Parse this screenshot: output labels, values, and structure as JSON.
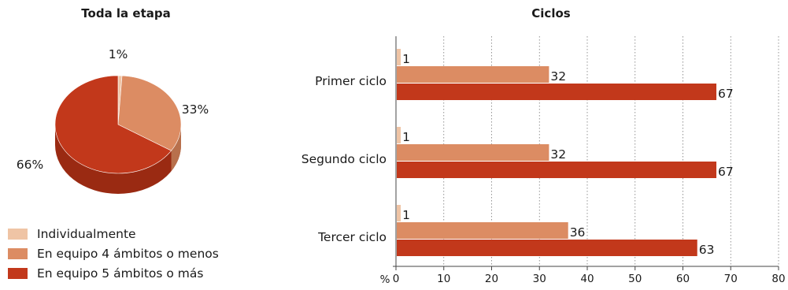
{
  "colors": {
    "individual": "#efc4a5",
    "team4": "#dc8c63",
    "team5": "#c2381b",
    "team5_side": "#9a2a12"
  },
  "legend": [
    {
      "label": "Individualmente",
      "color": "#efc4a5"
    },
    {
      "label": "En equipo 4 ámbitos o menos",
      "color": "#dc8c63"
    },
    {
      "label": "En equipo 5 ámbitos o más",
      "color": "#c2381b"
    }
  ],
  "chart_data": [
    {
      "type": "pie",
      "title": "Toda la etapa",
      "labels": [
        "Individualmente",
        "En equipo 4 ámbitos o menos",
        "En equipo 5 ámbitos o más"
      ],
      "values": [
        1,
        33,
        66
      ],
      "value_labels": [
        "1%",
        "33%",
        "66%"
      ]
    },
    {
      "type": "bar",
      "orientation": "horizontal",
      "title": "Ciclos",
      "categories": [
        "Primer ciclo",
        "Segundo ciclo",
        "Tercer ciclo"
      ],
      "series": [
        {
          "name": "Individualmente",
          "values": [
            1,
            1,
            1
          ]
        },
        {
          "name": "En equipo 4 ámbitos o menos",
          "values": [
            32,
            32,
            36
          ]
        },
        {
          "name": "En equipo 5 ámbitos o más",
          "values": [
            67,
            67,
            63
          ]
        }
      ],
      "xlabel": "%",
      "xlim": [
        0,
        80
      ],
      "xticks": [
        0,
        10,
        20,
        30,
        40,
        50,
        60,
        70,
        80
      ],
      "grid": "vertical dotted"
    }
  ]
}
